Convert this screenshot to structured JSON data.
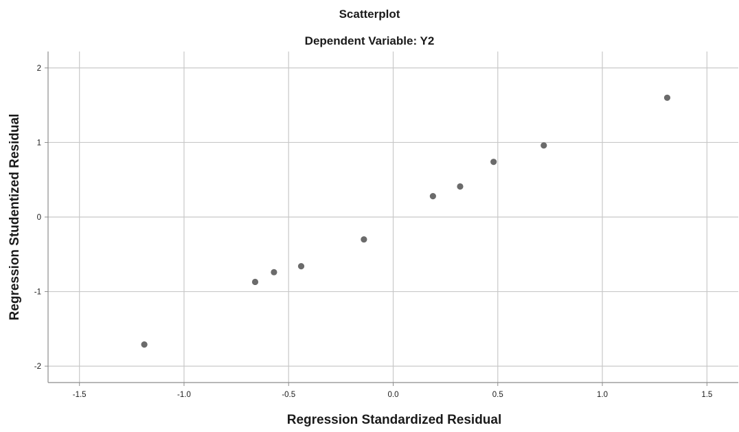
{
  "chart_data": {
    "type": "scatter",
    "title": "Scatterplot",
    "subtitle": "Dependent Variable: Y2",
    "xlabel": "Regression Standardized Residual",
    "ylabel": "Regression Studentized Residual",
    "xlim": [
      -1.65,
      1.65
    ],
    "ylim": [
      -2.22,
      2.22
    ],
    "xticks": [
      -1.5,
      -1.0,
      -0.5,
      0.0,
      0.5,
      1.0,
      1.5
    ],
    "xtick_labels": [
      "-1.5",
      "-1.0",
      "-0.5",
      "0.0",
      "0.5",
      "1.0",
      "1.5"
    ],
    "yticks": [
      -2,
      -1,
      0,
      1,
      2
    ],
    "ytick_labels": [
      "-2",
      "-1",
      "0",
      "1",
      "2"
    ],
    "grid": true,
    "points": [
      {
        "x": -1.19,
        "y": -1.71
      },
      {
        "x": -0.66,
        "y": -0.87
      },
      {
        "x": -0.57,
        "y": -0.74
      },
      {
        "x": -0.44,
        "y": -0.66
      },
      {
        "x": -0.14,
        "y": -0.3
      },
      {
        "x": 0.19,
        "y": 0.28
      },
      {
        "x": 0.32,
        "y": 0.41
      },
      {
        "x": 0.48,
        "y": 0.74
      },
      {
        "x": 0.72,
        "y": 0.96
      },
      {
        "x": 1.31,
        "y": 1.6
      }
    ],
    "colors": {
      "point": "#6b6b6b",
      "grid": "#c8c8c8",
      "axis": "#8c8c8c"
    }
  }
}
